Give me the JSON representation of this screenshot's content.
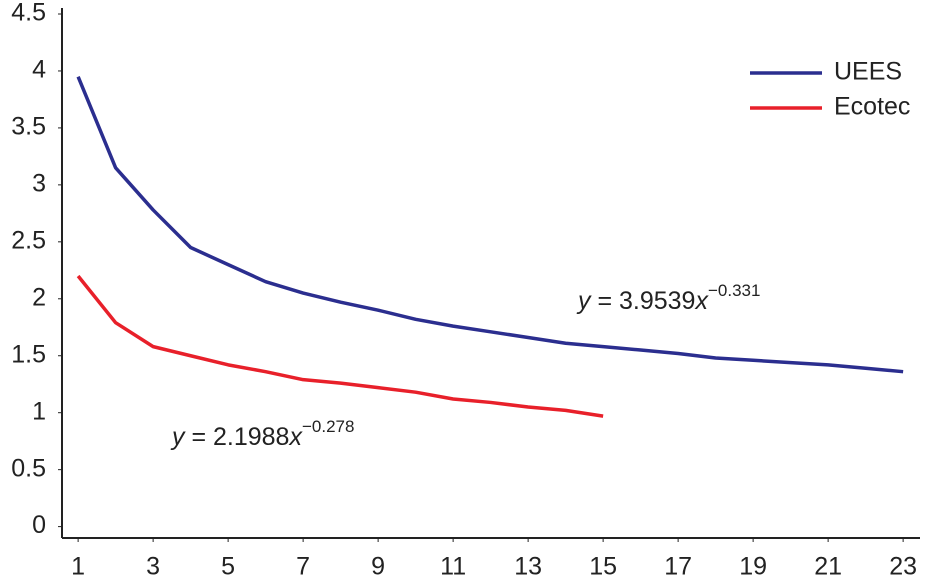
{
  "chart_data": {
    "type": "line",
    "x": [
      1,
      2,
      3,
      4,
      5,
      6,
      7,
      8,
      9,
      10,
      11,
      12,
      13,
      14,
      15,
      16,
      17,
      18,
      19,
      20,
      21,
      22,
      23
    ],
    "series": [
      {
        "name": "UEES",
        "color": "#2b2e8f",
        "values": [
          3.95,
          3.15,
          2.78,
          2.45,
          2.3,
          2.15,
          2.05,
          1.97,
          1.9,
          1.82,
          1.76,
          1.71,
          1.66,
          1.61,
          1.58,
          1.55,
          1.52,
          1.48,
          1.46,
          1.44,
          1.42,
          1.39,
          1.36
        ]
      },
      {
        "name": "Ecotec",
        "color": "#e8202a",
        "values": [
          2.2,
          1.79,
          1.58,
          1.5,
          1.42,
          1.36,
          1.29,
          1.26,
          1.22,
          1.18,
          1.12,
          1.09,
          1.05,
          1.02,
          0.97,
          null,
          null,
          null,
          null,
          null,
          null,
          null,
          null
        ]
      }
    ],
    "xlim": [
      0.57,
      23.45
    ],
    "xticks": [
      1,
      3,
      5,
      7,
      9,
      11,
      13,
      15,
      17,
      19,
      21,
      23
    ],
    "ylim": [
      -0.1,
      4.5
    ],
    "yticks": [
      0,
      0.5,
      1,
      1.5,
      2,
      2.5,
      3,
      3.5,
      4,
      4.5
    ],
    "grid": false,
    "legend": "top-right",
    "annotations": [
      {
        "lhs": "y",
        "rhs": " = 3.9539",
        "var": "x",
        "exponent": "−0.331"
      },
      {
        "lhs": "y",
        "rhs": " = 2.1988",
        "var": "x",
        "exponent": "−0.278"
      }
    ]
  }
}
